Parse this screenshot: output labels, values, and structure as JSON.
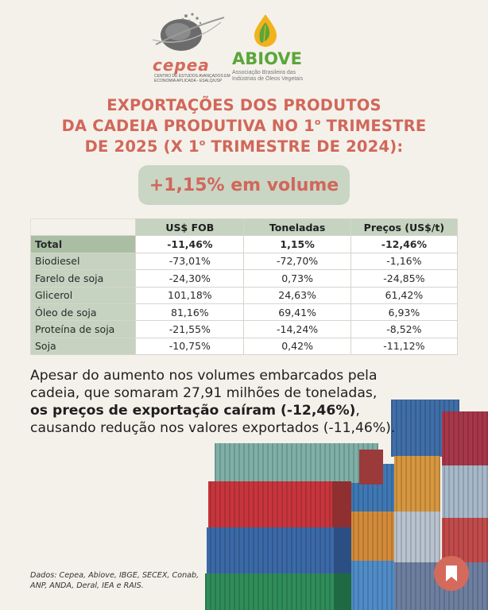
{
  "logos": {
    "cepea_name": "cepea",
    "cepea_subtitle": "Centro de Estudos Avançados em Economia Aplicada - ESALQ/USP",
    "abiove_name": "ABIOVE",
    "abiove_subtitle": "Associação Brasileira das Indústrias de Óleos Vegetais"
  },
  "title": {
    "line1_highlight": "EXPORTAÇÕES",
    "line1_rest": " DOS PRODUTOS",
    "line2_a": "DA CADEIA PRODUTIVA NO 1",
    "line2_sup": "o",
    "line2_b": " TRIMESTRE",
    "line3_a": "DE 2025 (X 1",
    "line3_sup": "o",
    "line3_b": " TRIMESTRE DE 2024):"
  },
  "highlight_pill": "+1,15% em volume",
  "table": {
    "headers": [
      "",
      "US$ FOB",
      "Toneladas",
      "Preços (US$/t)"
    ],
    "rows": [
      {
        "label": "Total",
        "fob": "-11,46%",
        "ton": "1,15%",
        "price": "-12,46%"
      },
      {
        "label": "Biodiesel",
        "fob": "-73,01%",
        "ton": "-72,70%",
        "price": "-1,16%"
      },
      {
        "label": "Farelo de soja",
        "fob": "-24,30%",
        "ton": "0,73%",
        "price": "-24,85%"
      },
      {
        "label": "Glicerol",
        "fob": "101,18%",
        "ton": "24,63%",
        "price": "61,42%"
      },
      {
        "label": "Óleo de soja",
        "fob": "81,16%",
        "ton": "69,41%",
        "price": "6,93%"
      },
      {
        "label": "Proteína de soja",
        "fob": "-21,55%",
        "ton": "-14,24%",
        "price": "-8,52%"
      },
      {
        "label": "Soja",
        "fob": "-10,75%",
        "ton": "0,42%",
        "price": "-11,12%"
      }
    ]
  },
  "body": {
    "part1": "Apesar do aumento nos volumes embarcados pela cadeia, que somaram 27,91 milhões de toneladas, ",
    "bold": "os preços de exportação caíram (-12,46%)",
    "part2": ", causando redução nos valores exportados (-11,46%)."
  },
  "source": "Dados: Cepea, Abiove, IBGE, SECEX, Conab, ANP, ANDA, Deral, IEA e RAIS.",
  "icons": {
    "bookmark": "bookmark-icon",
    "cepea_logo": "globe-icon",
    "abiove_logo": "leaf-drop-icon"
  },
  "colors": {
    "accent": "#d1675a",
    "table_header": "#c5d3c0",
    "background": "#f4f1ea",
    "abiove_green": "#5aa63a"
  }
}
